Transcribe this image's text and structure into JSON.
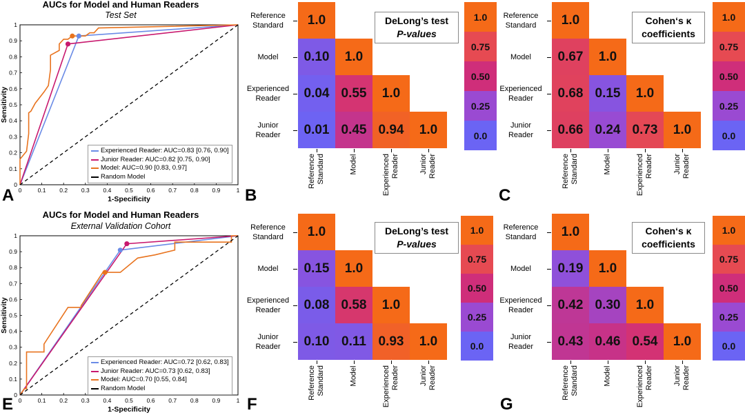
{
  "colors": {
    "experienced": "#6a8be6",
    "junior": "#c8186e",
    "model": "#e8731e",
    "random": "#000000",
    "c00": "#6b64f4",
    "c25": "#9a4ad2",
    "c50": "#cf2e7a",
    "c75": "#e64a52",
    "c100": "#f56a18"
  },
  "roc_test": {
    "letter": "A",
    "title": "AUCs for Model and Human Readers",
    "subtitle": "Test Set",
    "xlabel": "1-Specificity",
    "ylabel": "Sensitivity",
    "legend": [
      "Experienced Reader: AUC=0.83 [0.76, 0.90]",
      "Junior Reader: AUC=0.82 [0.75, 0.90]",
      "Model: AUC=0.90 [0.83, 0.97]",
      "Random Model"
    ]
  },
  "roc_external": {
    "letter": "E",
    "title": "AUCs for Model and Human Readers",
    "subtitle": "External Validation Cohort",
    "xlabel": "1-Specificity",
    "ylabel": "Sensitivity",
    "legend": [
      "Experienced Reader: AUC=0.72 [0.62, 0.83]",
      "Junior Reader: AUC=0.73 [0.62, 0.83]",
      "Model: AUC=0.70 [0.55, 0.84]",
      "Random Model"
    ]
  },
  "hm_labels": {
    "rows": [
      [
        "Reference",
        "Standard"
      ],
      [
        "Model"
      ],
      [
        "Experienced",
        "Reader"
      ],
      [
        "Junior",
        "Reader"
      ]
    ],
    "cols": [
      [
        "Reference",
        "Standard"
      ],
      [
        "Model"
      ],
      [
        "Experienced",
        "Reader"
      ],
      [
        "Junior",
        "Reader"
      ]
    ]
  },
  "hm_B": {
    "letter": "B",
    "title1": "DeLong’s test",
    "title2": "P-values",
    "italic2": true
  },
  "hm_C": {
    "letter": "C",
    "title1": "Cohen‘s κ",
    "title2": "coefficients",
    "italic2": false
  },
  "hm_F": {
    "letter": "F",
    "title1": "DeLong’s test",
    "title2": "P-values",
    "italic2": true
  },
  "hm_G": {
    "letter": "G",
    "title1": "Cohen‘s κ",
    "title2": "coefficients",
    "italic2": false
  },
  "colorbar_labels": [
    "1.0",
    "0.75",
    "0.50",
    "0.25",
    "0.0"
  ],
  "chart_data": [
    {
      "type": "line",
      "title": "AUCs for Model and Human Readers",
      "subtitle": "Test Set",
      "xlabel": "1-Specificity",
      "ylabel": "Sensitivity",
      "xlim": [
        0,
        1
      ],
      "ylim": [
        0,
        1
      ],
      "xticks": [
        "0",
        "0.1",
        "0.2",
        "0.3",
        "0.4",
        "0.5",
        "0.6",
        "0.7",
        "0.8",
        "0.9",
        "1"
      ],
      "yticks": [
        "0",
        "0.1",
        "0.2",
        "0.3",
        "0.4",
        "0.5",
        "0.6",
        "0.7",
        "0.8",
        "0.9",
        "1"
      ],
      "series": [
        {
          "name": "Experienced Reader: AUC=0.83 [0.76, 0.90]",
          "color_key": "experienced",
          "x": [
            0,
            0.27,
            1
          ],
          "y": [
            0,
            0.93,
            1
          ],
          "marker": [
            0.27,
            0.93
          ]
        },
        {
          "name": "Junior Reader: AUC=0.82 [0.75, 0.90]",
          "color_key": "junior",
          "x": [
            0,
            0.22,
            1
          ],
          "y": [
            0,
            0.88,
            1
          ],
          "marker": [
            0.22,
            0.88
          ]
        },
        {
          "name": "Model: AUC=0.90 [0.83, 0.97]",
          "color_key": "model",
          "x": [
            0,
            0,
            0.03,
            0.04,
            0.04,
            0.05,
            0.07,
            0.11,
            0.13,
            0.14,
            0.14,
            0.18,
            0.18,
            0.2,
            0.22,
            0.24,
            0.3,
            0.32,
            0.34,
            0.36,
            1
          ],
          "y": [
            0,
            0.16,
            0.21,
            0.32,
            0.45,
            0.46,
            0.51,
            0.58,
            0.62,
            0.72,
            0.81,
            0.84,
            0.88,
            0.91,
            0.91,
            0.93,
            0.93,
            0.95,
            0.95,
            0.98,
            1
          ],
          "marker": [
            0.24,
            0.93
          ]
        },
        {
          "name": "Random Model",
          "color_key": "random",
          "dashed": true,
          "x": [
            0,
            1
          ],
          "y": [
            0,
            1
          ]
        }
      ]
    },
    {
      "type": "heatmap",
      "title": "DeLong’s test P-values",
      "rows": [
        "Reference Standard",
        "Model",
        "Experienced Reader",
        "Junior Reader"
      ],
      "cols": [
        "Reference Standard",
        "Model",
        "Experienced Reader",
        "Junior Reader"
      ],
      "values": [
        [
          1.0,
          null,
          null,
          null
        ],
        [
          0.1,
          1.0,
          null,
          null
        ],
        [
          0.04,
          0.55,
          1.0,
          null
        ],
        [
          0.01,
          0.45,
          0.94,
          1.0
        ]
      ],
      "labels": [
        [
          "1.0"
        ],
        [
          "0.10",
          "1.0"
        ],
        [
          "0.04",
          "0.55",
          "1.0"
        ],
        [
          "0.01",
          "0.45",
          "0.94",
          "1.0"
        ]
      ],
      "colorbar": [
        "1.0",
        "0.75",
        "0.50",
        "0.25",
        "0.0"
      ]
    },
    {
      "type": "heatmap",
      "title": "Cohen‘s κ coefficients",
      "rows": [
        "Reference Standard",
        "Model",
        "Experienced Reader",
        "Junior Reader"
      ],
      "cols": [
        "Reference Standard",
        "Model",
        "Experienced Reader",
        "Junior Reader"
      ],
      "values": [
        [
          1.0,
          null,
          null,
          null
        ],
        [
          0.67,
          1.0,
          null,
          null
        ],
        [
          0.68,
          0.15,
          1.0,
          null
        ],
        [
          0.66,
          0.24,
          0.73,
          1.0
        ]
      ],
      "labels": [
        [
          "1.0"
        ],
        [
          "0.67",
          "1.0"
        ],
        [
          "0.68",
          "0.15",
          "1.0"
        ],
        [
          "0.66",
          "0.24",
          "0.73",
          "1.0"
        ]
      ],
      "colorbar": [
        "1.0",
        "0.75",
        "0.50",
        "0.25",
        "0.0"
      ]
    },
    {
      "type": "line",
      "title": "AUCs for Model and Human Readers",
      "subtitle": "External Validation Cohort",
      "xlabel": "1-Specificity",
      "ylabel": "Sensitivity",
      "xlim": [
        0,
        1
      ],
      "ylim": [
        0,
        1
      ],
      "xticks": [
        "0",
        "0.1",
        "0.2",
        "0.3",
        "0.4",
        "0.5",
        "0.6",
        "0.7",
        "0.8",
        "0.9",
        "1"
      ],
      "yticks": [
        "0",
        "0.1",
        "0.2",
        "0.3",
        "0.4",
        "0.5",
        "0.6",
        "0.7",
        "0.8",
        "0.9",
        "1"
      ],
      "series": [
        {
          "name": "Experienced Reader: AUC=0.72 [0.62, 0.83]",
          "color_key": "experienced",
          "x": [
            0,
            0.46,
            1
          ],
          "y": [
            0,
            0.91,
            1
          ],
          "marker": [
            0.46,
            0.91
          ]
        },
        {
          "name": "Junior Reader: AUC=0.73 [0.62, 0.83]",
          "color_key": "junior",
          "x": [
            0,
            0.49,
            1
          ],
          "y": [
            0,
            0.95,
            1
          ],
          "marker": [
            0.49,
            0.95
          ]
        },
        {
          "name": "Model: AUC=0.70 [0.55, 0.84]",
          "color_key": "model",
          "x": [
            0,
            0.02,
            0.03,
            0.03,
            0.11,
            0.11,
            0.22,
            0.28,
            0.28,
            0.38,
            0.38,
            0.46,
            0.54,
            0.54,
            0.62,
            0.71,
            0.71,
            0.97,
            0.97,
            1
          ],
          "y": [
            0,
            0.04,
            0.04,
            0.27,
            0.27,
            0.32,
            0.55,
            0.55,
            0.56,
            0.77,
            0.77,
            0.77,
            0.86,
            0.86,
            0.88,
            0.91,
            0.96,
            0.96,
            1,
            1
          ],
          "marker": [
            0.39,
            0.77
          ]
        },
        {
          "name": "Random Model",
          "color_key": "random",
          "dashed": true,
          "x": [
            0,
            1
          ],
          "y": [
            0,
            1
          ]
        }
      ]
    },
    {
      "type": "heatmap",
      "title": "DeLong’s test P-values",
      "rows": [
        "Reference Standard",
        "Model",
        "Experienced Reader",
        "Junior Reader"
      ],
      "cols": [
        "Reference Standard",
        "Model",
        "Experienced Reader",
        "Junior Reader"
      ],
      "values": [
        [
          1.0,
          null,
          null,
          null
        ],
        [
          0.15,
          1.0,
          null,
          null
        ],
        [
          0.08,
          0.58,
          1.0,
          null
        ],
        [
          0.1,
          0.11,
          0.93,
          1.0
        ]
      ],
      "labels": [
        [
          "1.0"
        ],
        [
          "0.15",
          "1.0"
        ],
        [
          "0.08",
          "0.58",
          "1.0"
        ],
        [
          "0.10",
          "0.11",
          "0.93",
          "1.0"
        ]
      ],
      "colorbar": [
        "1.0",
        "0.75",
        "0.50",
        "0.25",
        "0.0"
      ]
    },
    {
      "type": "heatmap",
      "title": "Cohen‘s κ coefficients",
      "rows": [
        "Reference Standard",
        "Model",
        "Experienced Reader",
        "Junior Reader"
      ],
      "cols": [
        "Reference Standard",
        "Model",
        "Experienced Reader",
        "Junior Reader"
      ],
      "values": [
        [
          1.0,
          null,
          null,
          null
        ],
        [
          0.19,
          1.0,
          null,
          null
        ],
        [
          0.42,
          0.3,
          1.0,
          null
        ],
        [
          0.43,
          0.46,
          0.54,
          1.0
        ]
      ],
      "labels": [
        [
          "1.0"
        ],
        [
          "0.19",
          "1.0"
        ],
        [
          "0.42",
          "0.30",
          "1.0"
        ],
        [
          "0.43",
          "0.46",
          "0.54",
          "1.0"
        ]
      ],
      "colorbar": [
        "1.0",
        "0.75",
        "0.50",
        "0.25",
        "0.0"
      ]
    }
  ]
}
